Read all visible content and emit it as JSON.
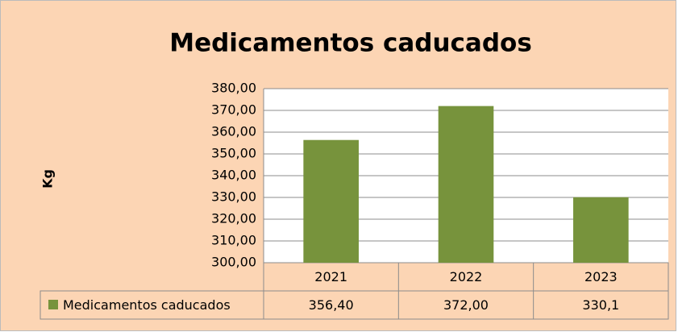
{
  "chart_data": {
    "type": "bar",
    "title": "Medicamentos caducados",
    "y_label": "Kg",
    "categories": [
      "2021",
      "2022",
      "2023"
    ],
    "series": [
      {
        "name": "Medicamentos caducados",
        "color": "#77933c",
        "values": [
          356.4,
          372.0,
          330.1
        ],
        "value_labels": [
          "356,40",
          "372,00",
          "330,1"
        ]
      }
    ],
    "ylim": [
      300,
      380
    ],
    "yticks": [
      {
        "value": 300,
        "label": "300,00"
      },
      {
        "value": 310,
        "label": "310,00"
      },
      {
        "value": 320,
        "label": "320,00"
      },
      {
        "value": 330,
        "label": "330,00"
      },
      {
        "value": 340,
        "label": "340,00"
      },
      {
        "value": 350,
        "label": "350,00"
      },
      {
        "value": 360,
        "label": "360,00"
      },
      {
        "value": 370,
        "label": "370,00"
      },
      {
        "value": 380,
        "label": "380,00"
      }
    ],
    "grid": true,
    "data_table": true
  }
}
